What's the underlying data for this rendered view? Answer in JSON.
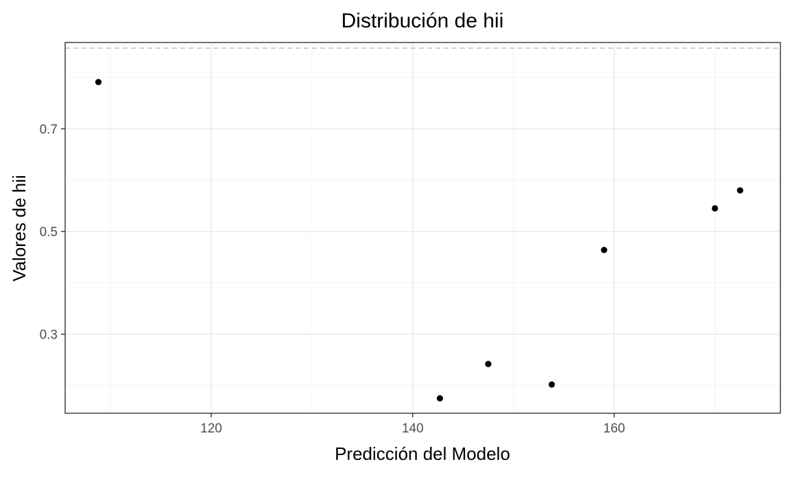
{
  "chart_data": {
    "type": "scatter",
    "title": "Distribución de hii",
    "xlabel": "Predicción del Modelo",
    "ylabel": "Valores de hii",
    "xlim": [
      105.5,
      176.5
    ],
    "ylim": [
      0.146,
      0.868
    ],
    "x_ticks": [
      120,
      140,
      160
    ],
    "x_tick_labels": [
      "120",
      "140",
      "160"
    ],
    "x_minor_ticks": [
      110,
      130,
      150,
      170
    ],
    "y_ticks": [
      0.3,
      0.5,
      0.7
    ],
    "y_tick_labels": [
      "0.3",
      "0.5",
      "0.7"
    ],
    "y_minor_ticks": [
      0.2,
      0.4,
      0.6,
      0.8
    ],
    "reference_line": {
      "y": 0.857,
      "style": "dashed",
      "color": "#bebebe"
    },
    "grid": true,
    "theme": "bw",
    "point_color": "#000000",
    "points": [
      {
        "x": 108.8,
        "y": 0.791
      },
      {
        "x": 142.7,
        "y": 0.175
      },
      {
        "x": 147.5,
        "y": 0.242
      },
      {
        "x": 153.8,
        "y": 0.202
      },
      {
        "x": 159.0,
        "y": 0.464
      },
      {
        "x": 170.0,
        "y": 0.545
      },
      {
        "x": 172.5,
        "y": 0.58
      }
    ]
  }
}
